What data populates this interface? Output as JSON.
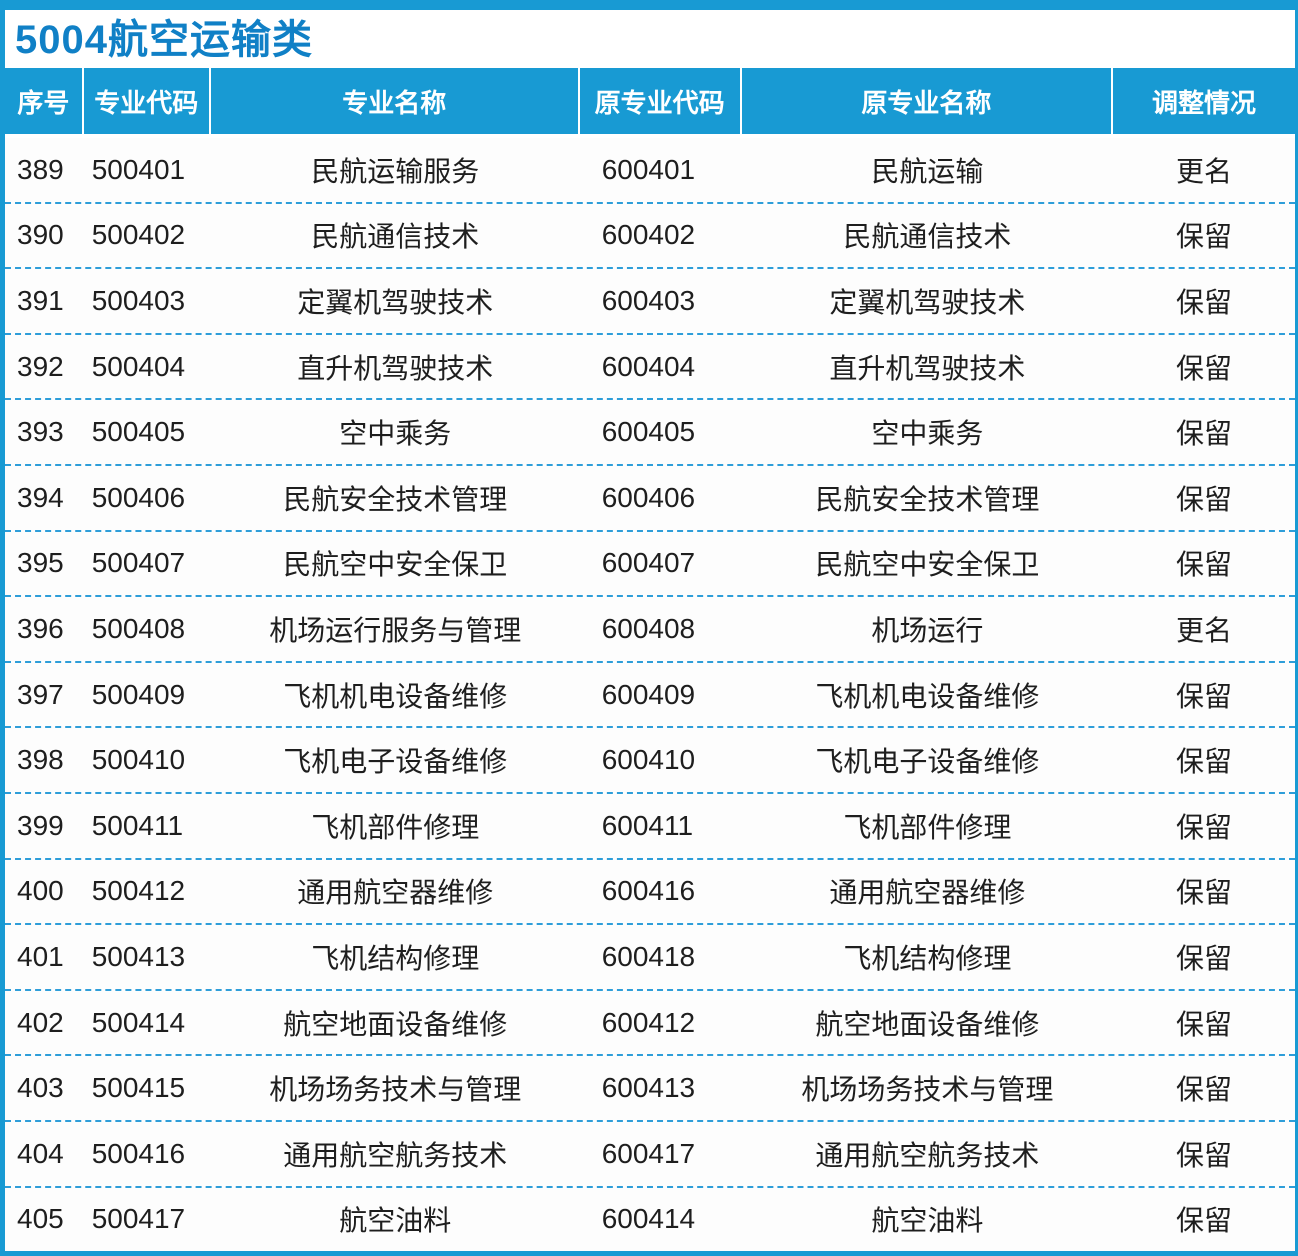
{
  "chart_data": {
    "type": "table",
    "title": "5004航空运输类",
    "columns": [
      "序号",
      "专业代码",
      "专业名称",
      "原专业代码",
      "原专业名称",
      "调整情况"
    ],
    "rows": [
      [
        "389",
        "500401",
        "民航运输服务",
        "600401",
        "民航运输",
        "更名"
      ],
      [
        "390",
        "500402",
        "民航通信技术",
        "600402",
        "民航通信技术",
        "保留"
      ],
      [
        "391",
        "500403",
        "定翼机驾驶技术",
        "600403",
        "定翼机驾驶技术",
        "保留"
      ],
      [
        "392",
        "500404",
        "直升机驾驶技术",
        "600404",
        "直升机驾驶技术",
        "保留"
      ],
      [
        "393",
        "500405",
        "空中乘务",
        "600405",
        "空中乘务",
        "保留"
      ],
      [
        "394",
        "500406",
        "民航安全技术管理",
        "600406",
        "民航安全技术管理",
        "保留"
      ],
      [
        "395",
        "500407",
        "民航空中安全保卫",
        "600407",
        "民航空中安全保卫",
        "保留"
      ],
      [
        "396",
        "500408",
        "机场运行服务与管理",
        "600408",
        "机场运行",
        "更名"
      ],
      [
        "397",
        "500409",
        "飞机机电设备维修",
        "600409",
        "飞机机电设备维修",
        "保留"
      ],
      [
        "398",
        "500410",
        "飞机电子设备维修",
        "600410",
        "飞机电子设备维修",
        "保留"
      ],
      [
        "399",
        "500411",
        "飞机部件修理",
        "600411",
        "飞机部件修理",
        "保留"
      ],
      [
        "400",
        "500412",
        "通用航空器维修",
        "600416",
        "通用航空器维修",
        "保留"
      ],
      [
        "401",
        "500413",
        "飞机结构修理",
        "600418",
        "飞机结构修理",
        "保留"
      ],
      [
        "402",
        "500414",
        "航空地面设备维修",
        "600412",
        "航空地面设备维修",
        "保留"
      ],
      [
        "403",
        "500415",
        "机场场务技术与管理",
        "600413",
        "机场场务技术与管理",
        "保留"
      ],
      [
        "404",
        "500416",
        "通用航空航务技术",
        "600417",
        "通用航空航务技术",
        "保留"
      ],
      [
        "405",
        "500417",
        "航空油料",
        "600414",
        "航空油料",
        "保留"
      ]
    ],
    "layout_hints": {
      "grid": "dashed horizontal separators between rows",
      "header_position": "top"
    }
  },
  "colors": {
    "header_bg": "#189AD3",
    "title_text": "#1080C6",
    "dashed_line": "#2E9ED9",
    "border": "#189AD3",
    "row_text": "#1E1E1E",
    "header_text": "#FFFFFF"
  }
}
